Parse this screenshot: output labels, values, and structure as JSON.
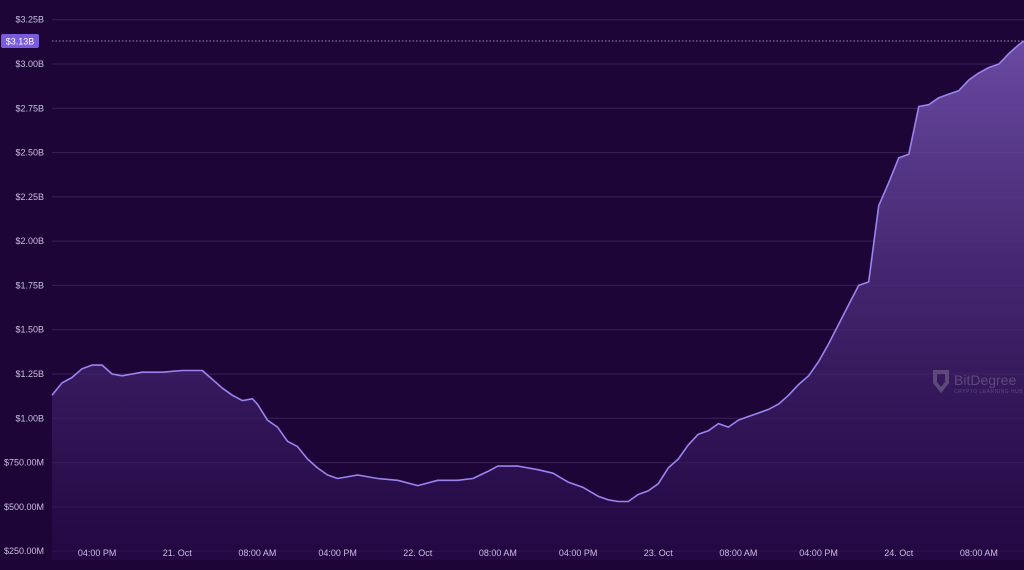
{
  "chart_data": {
    "type": "area",
    "title": "",
    "xlabel": "",
    "ylabel": "",
    "ylim": [
      200000000,
      3350000000
    ],
    "y_ticks": [
      {
        "value": 250000000,
        "label": "$250.00M"
      },
      {
        "value": 500000000,
        "label": "$500.00M"
      },
      {
        "value": 750000000,
        "label": "$750.00M"
      },
      {
        "value": 1000000000,
        "label": "$1.00B"
      },
      {
        "value": 1250000000,
        "label": "$1.25B"
      },
      {
        "value": 1500000000,
        "label": "$1.50B"
      },
      {
        "value": 1750000000,
        "label": "$1.75B"
      },
      {
        "value": 2000000000,
        "label": "$2.00B"
      },
      {
        "value": 2250000000,
        "label": "$2.25B"
      },
      {
        "value": 2500000000,
        "label": "$2.50B"
      },
      {
        "value": 2750000000,
        "label": "$2.75B"
      },
      {
        "value": 3000000000,
        "label": "$3.00B"
      },
      {
        "value": 3250000000,
        "label": "$3.25B"
      }
    ],
    "x_ticks": [
      {
        "value": "2024-10-20T16:00",
        "label": "04:00 PM"
      },
      {
        "value": "2024-10-21T00:00",
        "label": "21. Oct"
      },
      {
        "value": "2024-10-21T08:00",
        "label": "08:00 AM"
      },
      {
        "value": "2024-10-21T16:00",
        "label": "04:00 PM"
      },
      {
        "value": "2024-10-22T00:00",
        "label": "22. Oct"
      },
      {
        "value": "2024-10-22T08:00",
        "label": "08:00 AM"
      },
      {
        "value": "2024-10-22T16:00",
        "label": "04:00 PM"
      },
      {
        "value": "2024-10-23T00:00",
        "label": "23. Oct"
      },
      {
        "value": "2024-10-23T08:00",
        "label": "08:00 AM"
      },
      {
        "value": "2024-10-23T16:00",
        "label": "04:00 PM"
      },
      {
        "value": "2024-10-24T00:00",
        "label": "24. Oct"
      },
      {
        "value": "2024-10-24T08:00",
        "label": "08:00 AM"
      }
    ],
    "xlim": [
      "2024-10-20T11:30",
      "2024-10-24T12:30"
    ],
    "grid": true,
    "colors": {
      "line": "#9b84f0",
      "area_top": "#6e4ea8",
      "area_bottom": "#26094a",
      "grid": "#3a2158",
      "badge": "#7a5cdc"
    },
    "current_value": {
      "value": 3130000000,
      "label": "$3.13B"
    },
    "series": [
      {
        "x": [
          "2024-10-20T11:30",
          "2024-10-20T12:30",
          "2024-10-20T13:30",
          "2024-10-20T14:30",
          "2024-10-20T15:30",
          "2024-10-20T16:30",
          "2024-10-20T17:30",
          "2024-10-20T18:30",
          "2024-10-20T20:30",
          "2024-10-20T22:30",
          "2024-10-21T00:30",
          "2024-10-21T02:30",
          "2024-10-21T04:30",
          "2024-10-21T05:30",
          "2024-10-21T06:30",
          "2024-10-21T07:30",
          "2024-10-21T08:00",
          "2024-10-21T09:00",
          "2024-10-21T10:00",
          "2024-10-21T11:00",
          "2024-10-21T12:00",
          "2024-10-21T13:00",
          "2024-10-21T14:00",
          "2024-10-21T15:00",
          "2024-10-21T16:00",
          "2024-10-21T18:00",
          "2024-10-21T20:00",
          "2024-10-21T22:00",
          "2024-10-22T00:00",
          "2024-10-22T02:00",
          "2024-10-22T04:00",
          "2024-10-22T05:30",
          "2024-10-22T07:00",
          "2024-10-22T08:00",
          "2024-10-22T10:00",
          "2024-10-22T12:00",
          "2024-10-22T13:30",
          "2024-10-22T15:00",
          "2024-10-22T16:30",
          "2024-10-22T18:00",
          "2024-10-22T19:00",
          "2024-10-22T20:00",
          "2024-10-22T21:00",
          "2024-10-22T22:00",
          "2024-10-22T23:00",
          "2024-10-23T00:00",
          "2024-10-23T01:00",
          "2024-10-23T02:00",
          "2024-10-23T03:00",
          "2024-10-23T04:00",
          "2024-10-23T05:00",
          "2024-10-23T06:00",
          "2024-10-23T07:00",
          "2024-10-23T08:00",
          "2024-10-23T09:00",
          "2024-10-23T10:00",
          "2024-10-23T11:00",
          "2024-10-23T12:00",
          "2024-10-23T13:00",
          "2024-10-23T14:00",
          "2024-10-23T15:00",
          "2024-10-23T16:00",
          "2024-10-23T17:00",
          "2024-10-23T18:00",
          "2024-10-23T19:00",
          "2024-10-23T20:00",
          "2024-10-23T21:00",
          "2024-10-23T22:00",
          "2024-10-23T23:00",
          "2024-10-24T00:00",
          "2024-10-24T01:00",
          "2024-10-24T02:00",
          "2024-10-24T03:00",
          "2024-10-24T04:00",
          "2024-10-24T05:00",
          "2024-10-24T06:00",
          "2024-10-24T07:00",
          "2024-10-24T08:00",
          "2024-10-24T09:00",
          "2024-10-24T10:00",
          "2024-10-24T11:00",
          "2024-10-24T12:00",
          "2024-10-24T12:30"
        ],
        "values": [
          1130000000,
          1200000000,
          1230000000,
          1280000000,
          1300000000,
          1300000000,
          1250000000,
          1240000000,
          1260000000,
          1260000000,
          1270000000,
          1270000000,
          1170000000,
          1130000000,
          1100000000,
          1110000000,
          1080000000,
          990000000,
          950000000,
          870000000,
          840000000,
          770000000,
          720000000,
          680000000,
          660000000,
          680000000,
          660000000,
          650000000,
          620000000,
          650000000,
          650000000,
          660000000,
          700000000,
          730000000,
          730000000,
          710000000,
          690000000,
          640000000,
          610000000,
          560000000,
          540000000,
          530000000,
          530000000,
          570000000,
          590000000,
          630000000,
          720000000,
          770000000,
          850000000,
          910000000,
          930000000,
          970000000,
          950000000,
          990000000,
          1010000000,
          1030000000,
          1050000000,
          1080000000,
          1130000000,
          1190000000,
          1240000000,
          1320000000,
          1420000000,
          1530000000,
          1640000000,
          1750000000,
          1770000000,
          2200000000,
          2330000000,
          2470000000,
          2490000000,
          2760000000,
          2770000000,
          2810000000,
          2830000000,
          2850000000,
          2910000000,
          2950000000,
          2980000000,
          3000000000,
          3060000000,
          3110000000,
          3130000000
        ]
      }
    ]
  },
  "watermark": {
    "brand": "BitDegree",
    "tagline": "CRYPTO LEARNING HUB"
  }
}
